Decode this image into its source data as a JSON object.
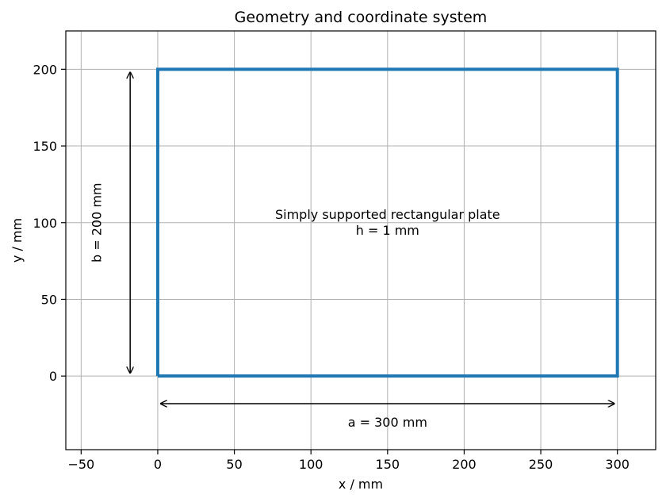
{
  "chart_data": {
    "type": "line",
    "title": "Geometry and coordinate system",
    "xlabel": "x / mm",
    "ylabel": "y / mm",
    "xlim": [
      -60,
      325
    ],
    "ylim": [
      -48,
      225
    ],
    "xticks": [
      -50,
      0,
      50,
      100,
      150,
      200,
      250,
      300
    ],
    "yticks": [
      0,
      50,
      100,
      150,
      200
    ],
    "xtick_labels": [
      "−50",
      "0",
      "50",
      "100",
      "150",
      "200",
      "250",
      "300"
    ],
    "ytick_labels": [
      "0",
      "50",
      "100",
      "150",
      "200"
    ],
    "grid": true,
    "series": [
      {
        "color": "#1f77b4",
        "x": [
          0,
          300,
          300,
          0,
          0
        ],
        "y": [
          0,
          0,
          200,
          200,
          0
        ]
      }
    ],
    "annotations": {
      "plate_text_line1": "Simply supported rectangular plate",
      "plate_text_line2": "h = 1 mm",
      "plate_text_anchor": [
        150,
        100
      ],
      "width_label": "a = 300 mm",
      "width_label_anchor": [
        150,
        -30
      ],
      "width_arrow": {
        "from": [
          2,
          -18
        ],
        "to": [
          298,
          -18
        ]
      },
      "height_label": "b = 200 mm",
      "height_label_anchor": [
        -40,
        100
      ],
      "height_arrow": {
        "from": [
          -18,
          2
        ],
        "to": [
          -18,
          198
        ]
      }
    }
  }
}
